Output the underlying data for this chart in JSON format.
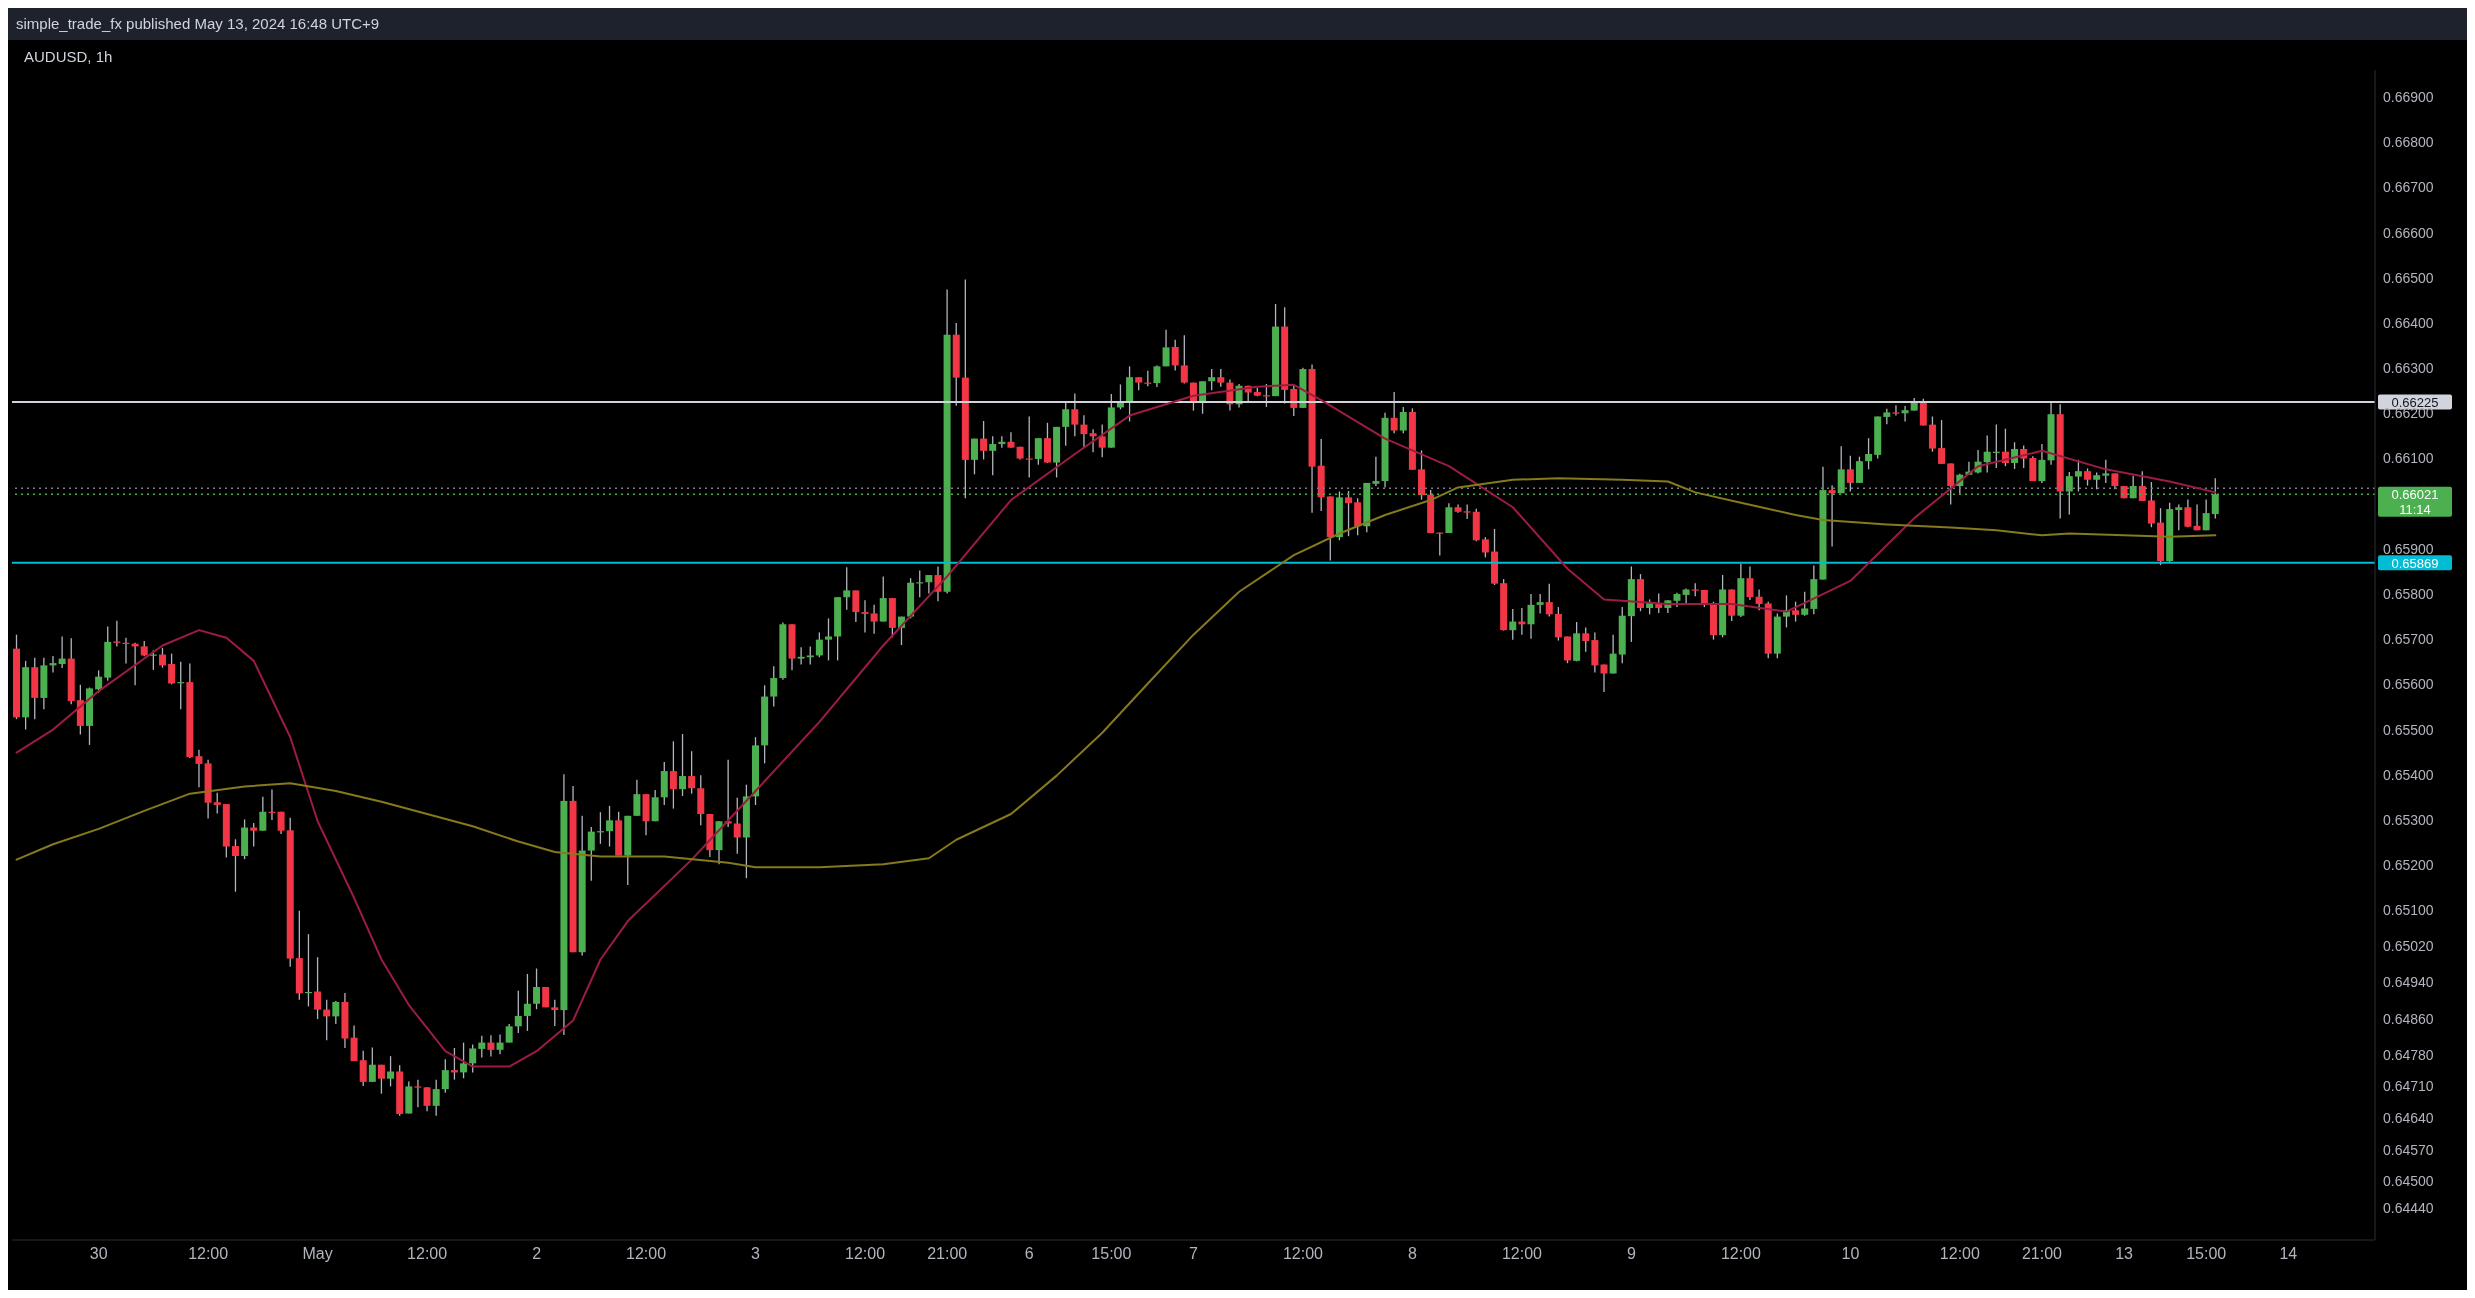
{
  "chart_data": {
    "type": "candlestick",
    "title": "AUDUSD, 1h",
    "annotations": [
      "simple_trade_fx published May 13, 2024 16:48 UTC+9",
      "11:14"
    ],
    "categories": [
      null,
      null,
      null,
      null,
      null,
      null,
      null,
      null,
      null,
      "30",
      null,
      null,
      null,
      null,
      null,
      null,
      null,
      null,
      null,
      null,
      null,
      "12:00",
      null,
      null,
      null,
      null,
      null,
      null,
      null,
      null,
      null,
      null,
      null,
      "May",
      null,
      null,
      null,
      null,
      null,
      null,
      null,
      null,
      null,
      null,
      null,
      "12:00",
      null,
      null,
      null,
      null,
      null,
      null,
      null,
      null,
      null,
      null,
      null,
      "2",
      null,
      null,
      null,
      null,
      null,
      null,
      null,
      null,
      null,
      null,
      null,
      "12:00",
      null,
      null,
      null,
      null,
      null,
      null,
      null,
      null,
      null,
      null,
      null,
      "3",
      null,
      null,
      null,
      null,
      null,
      null,
      null,
      null,
      null,
      null,
      null,
      "12:00",
      null,
      null,
      null,
      null,
      null,
      null,
      null,
      null,
      "21:00",
      null,
      null,
      null,
      null,
      null,
      null,
      null,
      null,
      "6",
      null,
      null,
      null,
      null,
      null,
      null,
      null,
      null,
      "15:00",
      null,
      null,
      null,
      null,
      null,
      null,
      null,
      null,
      "7",
      null,
      null,
      null,
      null,
      null,
      null,
      null,
      null,
      null,
      null,
      null,
      "12:00",
      null,
      null,
      null,
      null,
      null,
      null,
      null,
      null,
      null,
      null,
      null,
      "8",
      null,
      null,
      null,
      null,
      null,
      null,
      null,
      null,
      null,
      null,
      null,
      "12:00",
      null,
      null,
      null,
      null,
      null,
      null,
      null,
      null,
      null,
      null,
      null,
      "9",
      null,
      null,
      null,
      null,
      null,
      null,
      null,
      null,
      null,
      null,
      null,
      "12:00",
      null,
      null,
      null,
      null,
      null,
      null,
      null,
      null,
      null,
      null,
      null,
      "10",
      null,
      null,
      null,
      null,
      null,
      null,
      null,
      null,
      null,
      null,
      null,
      "12:00",
      null,
      null,
      null,
      null,
      null,
      null,
      null,
      null,
      "21:00",
      null,
      null,
      null,
      null,
      null,
      null,
      null,
      null,
      "13",
      null,
      null,
      null,
      null,
      null,
      null,
      null,
      null,
      "15:00",
      null,
      null,
      null,
      null,
      null,
      null,
      null,
      null,
      "14",
      null,
      null,
      null,
      null,
      null,
      null,
      null,
      null,
      null
    ],
    "ohlc": [
      [
        0.65679,
        0.6571,
        0.65523,
        0.65527
      ],
      [
        0.65527,
        0.65652,
        0.655,
        0.65638
      ],
      [
        0.65638,
        0.65659,
        0.65523,
        0.6557
      ],
      [
        0.6557,
        0.65659,
        0.65545,
        0.65642
      ],
      [
        0.65642,
        0.65663,
        0.65626,
        0.65647
      ],
      [
        0.65645,
        0.65706,
        0.65636,
        0.65657
      ],
      [
        0.65657,
        0.65702,
        0.65556,
        0.65563
      ],
      [
        0.65565,
        0.65599,
        0.65489,
        0.65508
      ],
      [
        0.65508,
        0.65593,
        0.65466,
        0.65591
      ],
      [
        0.65589,
        0.65631,
        0.65581,
        0.65617
      ],
      [
        0.65615,
        0.65728,
        0.65608,
        0.65694
      ],
      [
        0.65695,
        0.65741,
        0.65684,
        0.65692
      ],
      [
        0.65692,
        0.65703,
        0.65646,
        0.6569
      ],
      [
        0.6569,
        0.65692,
        0.65598,
        0.65684
      ],
      [
        0.65684,
        0.65696,
        0.65662,
        0.65664
      ],
      [
        0.65664,
        0.65675,
        0.65632,
        0.65666
      ],
      [
        0.65666,
        0.65681,
        0.65637,
        0.65642
      ],
      [
        0.65645,
        0.65668,
        0.656,
        0.65602
      ],
      [
        0.65604,
        0.6565,
        0.65545,
        0.65605
      ],
      [
        0.65605,
        0.65646,
        0.65437,
        0.65439
      ],
      [
        0.65441,
        0.65455,
        0.65372,
        0.65424
      ],
      [
        0.65425,
        0.65433,
        0.65303,
        0.65338
      ],
      [
        0.65339,
        0.6536,
        0.65314,
        0.65333
      ],
      [
        0.65335,
        0.65335,
        0.65217,
        0.65241
      ],
      [
        0.65242,
        0.65257,
        0.65141,
        0.6522
      ],
      [
        0.6522,
        0.65301,
        0.65213,
        0.65283
      ],
      [
        0.65283,
        0.65293,
        0.65241,
        0.65276
      ],
      [
        0.65276,
        0.65351,
        0.65276,
        0.65318
      ],
      [
        0.65318,
        0.65367,
        0.653,
        0.65317
      ],
      [
        0.65318,
        0.65318,
        0.65269,
        0.65276
      ],
      [
        0.65277,
        0.65305,
        0.64975,
        0.64993
      ],
      [
        0.64994,
        0.65099,
        0.64902,
        0.64916
      ],
      [
        0.64917,
        0.65047,
        0.64887,
        0.64919
      ],
      [
        0.6492,
        0.64996,
        0.64859,
        0.6488
      ],
      [
        0.6488,
        0.64902,
        0.64812,
        0.64865
      ],
      [
        0.64865,
        0.64899,
        0.64848,
        0.64897
      ],
      [
        0.64897,
        0.64917,
        0.64795,
        0.64816
      ],
      [
        0.64818,
        0.64845,
        0.64766,
        0.64766
      ],
      [
        0.64768,
        0.64789,
        0.64711,
        0.6472
      ],
      [
        0.6472,
        0.64796,
        0.6472,
        0.64758
      ],
      [
        0.64758,
        0.64758,
        0.64694,
        0.64727
      ],
      [
        0.64727,
        0.64777,
        0.6471,
        0.64743
      ],
      [
        0.64743,
        0.64757,
        0.64645,
        0.64649
      ],
      [
        0.6465,
        0.64721,
        0.6465,
        0.6471
      ],
      [
        0.6471,
        0.64725,
        0.64664,
        0.64708
      ],
      [
        0.64708,
        0.64708,
        0.64655,
        0.64667
      ],
      [
        0.64667,
        0.64725,
        0.64645,
        0.64704
      ],
      [
        0.64704,
        0.6477,
        0.64696,
        0.64746
      ],
      [
        0.64746,
        0.64795,
        0.64725,
        0.64741
      ],
      [
        0.64741,
        0.64807,
        0.64728,
        0.64761
      ],
      [
        0.64761,
        0.64803,
        0.64741,
        0.64794
      ],
      [
        0.64793,
        0.64822,
        0.64774,
        0.64807
      ],
      [
        0.64807,
        0.64823,
        0.64776,
        0.64791
      ],
      [
        0.64791,
        0.64825,
        0.64781,
        0.64807
      ],
      [
        0.64807,
        0.64848,
        0.64807,
        0.64843
      ],
      [
        0.64843,
        0.64922,
        0.64828,
        0.64866
      ],
      [
        0.64866,
        0.64959,
        0.64833,
        0.64893
      ],
      [
        0.64893,
        0.64971,
        0.64881,
        0.6493
      ],
      [
        0.6493,
        0.6493,
        0.64885,
        0.64885
      ],
      [
        0.64885,
        0.64902,
        0.64844,
        0.64879
      ],
      [
        0.64879,
        0.65401,
        0.64824,
        0.65342
      ],
      [
        0.65342,
        0.65375,
        0.65007,
        0.65007
      ],
      [
        0.65007,
        0.65309,
        0.65,
        0.65232
      ],
      [
        0.65232,
        0.65284,
        0.65165,
        0.65274
      ],
      [
        0.65273,
        0.65317,
        0.65247,
        0.65275
      ],
      [
        0.65275,
        0.65331,
        0.65241,
        0.65299
      ],
      [
        0.65299,
        0.65318,
        0.65221,
        0.65221
      ],
      [
        0.65221,
        0.65309,
        0.65156,
        0.65309
      ],
      [
        0.65309,
        0.65389,
        0.65309,
        0.65357
      ],
      [
        0.65357,
        0.65357,
        0.65266,
        0.65297
      ],
      [
        0.65297,
        0.65366,
        0.65297,
        0.6535
      ],
      [
        0.6535,
        0.65428,
        0.65333,
        0.65408
      ],
      [
        0.65408,
        0.65474,
        0.65325,
        0.65368
      ],
      [
        0.65368,
        0.6549,
        0.65353,
        0.65397
      ],
      [
        0.65397,
        0.65452,
        0.65358,
        0.6537
      ],
      [
        0.6537,
        0.65399,
        0.65288,
        0.65313
      ],
      [
        0.65313,
        0.65313,
        0.65218,
        0.65233
      ],
      [
        0.65233,
        0.65297,
        0.65202,
        0.65297
      ],
      [
        0.65297,
        0.65433,
        0.65284,
        0.65292
      ],
      [
        0.65292,
        0.65349,
        0.65225,
        0.65261
      ],
      [
        0.65261,
        0.65378,
        0.65171,
        0.65352
      ],
      [
        0.65352,
        0.65483,
        0.65333,
        0.65465
      ],
      [
        0.65465,
        0.65598,
        0.65425,
        0.65573
      ],
      [
        0.65573,
        0.6564,
        0.65551,
        0.65614
      ],
      [
        0.65614,
        0.65737,
        0.6561,
        0.65733
      ],
      [
        0.65733,
        0.65733,
        0.65631,
        0.65657
      ],
      [
        0.65657,
        0.65682,
        0.65644,
        0.65661
      ],
      [
        0.6566,
        0.65684,
        0.65644,
        0.65664
      ],
      [
        0.65664,
        0.65715,
        0.6566,
        0.65699
      ],
      [
        0.65699,
        0.65746,
        0.65653,
        0.65706
      ],
      [
        0.65706,
        0.65793,
        0.65653,
        0.65793
      ],
      [
        0.65793,
        0.65859,
        0.65765,
        0.65808
      ],
      [
        0.65808,
        0.65808,
        0.65738,
        0.6576
      ],
      [
        0.6576,
        0.65786,
        0.65715,
        0.65756
      ],
      [
        0.65757,
        0.65776,
        0.65712,
        0.65739
      ],
      [
        0.65739,
        0.65839,
        0.65739,
        0.65791
      ],
      [
        0.65791,
        0.65791,
        0.65704,
        0.65725
      ],
      [
        0.65725,
        0.6575,
        0.65687,
        0.6575
      ],
      [
        0.6575,
        0.65835,
        0.65746,
        0.65825
      ],
      [
        0.65825,
        0.65852,
        0.65793,
        0.65826
      ],
      [
        0.65826,
        0.65842,
        0.65801,
        0.65842
      ],
      [
        0.65842,
        0.65861,
        0.65784,
        0.65805
      ],
      [
        0.65805,
        0.66474,
        0.65801,
        0.66374
      ],
      [
        0.66374,
        0.664,
        0.66217,
        0.66279
      ],
      [
        0.66279,
        0.66496,
        0.66012,
        0.66097
      ],
      [
        0.66097,
        0.66144,
        0.66065,
        0.66144
      ],
      [
        0.66144,
        0.66183,
        0.66098,
        0.66117
      ],
      [
        0.66117,
        0.66149,
        0.66063,
        0.66132
      ],
      [
        0.66132,
        0.66149,
        0.66124,
        0.66137
      ],
      [
        0.66137,
        0.66158,
        0.66124,
        0.66124
      ],
      [
        0.66126,
        0.66126,
        0.66098,
        0.661
      ],
      [
        0.661,
        0.66193,
        0.66058,
        0.66099
      ],
      [
        0.66099,
        0.66145,
        0.66086,
        0.66145
      ],
      [
        0.66145,
        0.66179,
        0.6609,
        0.66091
      ],
      [
        0.66091,
        0.6617,
        0.66058,
        0.6617
      ],
      [
        0.6617,
        0.66224,
        0.66128,
        0.66209
      ],
      [
        0.66209,
        0.66244,
        0.66149,
        0.66175
      ],
      [
        0.66175,
        0.66196,
        0.66124,
        0.66154
      ],
      [
        0.66156,
        0.66165,
        0.66114,
        0.66149
      ],
      [
        0.66149,
        0.66175,
        0.66103,
        0.66124
      ],
      [
        0.66124,
        0.66243,
        0.66124,
        0.66213
      ],
      [
        0.66213,
        0.66264,
        0.66209,
        0.66224
      ],
      [
        0.66224,
        0.66304,
        0.66182,
        0.6628
      ],
      [
        0.6628,
        0.6628,
        0.66251,
        0.66268
      ],
      [
        0.66268,
        0.66294,
        0.6626,
        0.66267
      ],
      [
        0.66267,
        0.66306,
        0.66258,
        0.66304
      ],
      [
        0.66304,
        0.66385,
        0.66304,
        0.66346
      ],
      [
        0.66347,
        0.66363,
        0.66295,
        0.66306
      ],
      [
        0.66306,
        0.66373,
        0.66266,
        0.66268
      ],
      [
        0.66268,
        0.66268,
        0.66206,
        0.66227
      ],
      [
        0.66227,
        0.66271,
        0.66199,
        0.66271
      ],
      [
        0.66271,
        0.66298,
        0.66251,
        0.6628
      ],
      [
        0.6628,
        0.66298,
        0.66259,
        0.66268
      ],
      [
        0.66268,
        0.66275,
        0.66206,
        0.6622
      ],
      [
        0.6622,
        0.66265,
        0.66213,
        0.66261
      ],
      [
        0.66261,
        0.66261,
        0.66225,
        0.66246
      ],
      [
        0.66247,
        0.66256,
        0.66238,
        0.66239
      ],
      [
        0.6624,
        0.66265,
        0.66214,
        0.66239
      ],
      [
        0.66238,
        0.66442,
        0.66238,
        0.66392
      ],
      [
        0.66392,
        0.66435,
        0.66222,
        0.66252
      ],
      [
        0.66254,
        0.66263,
        0.66194,
        0.66212
      ],
      [
        0.66212,
        0.66301,
        0.66212,
        0.66298
      ],
      [
        0.66298,
        0.66308,
        0.6598,
        0.66082
      ],
      [
        0.66084,
        0.66143,
        0.65984,
        0.66014
      ],
      [
        0.66016,
        0.66016,
        0.65874,
        0.65926
      ],
      [
        0.65926,
        0.66027,
        0.65919,
        0.66014
      ],
      [
        0.66014,
        0.66028,
        0.65928,
        0.66001
      ],
      [
        0.66003,
        0.66012,
        0.6593,
        0.6595
      ],
      [
        0.6595,
        0.66046,
        0.65937,
        0.66046
      ],
      [
        0.66044,
        0.66104,
        0.66039,
        0.6605
      ],
      [
        0.6605,
        0.66201,
        0.66036,
        0.6619
      ],
      [
        0.6619,
        0.66247,
        0.66156,
        0.66162
      ],
      [
        0.66162,
        0.66214,
        0.66156,
        0.66203
      ],
      [
        0.66203,
        0.66211,
        0.66075,
        0.66075
      ],
      [
        0.66076,
        0.66118,
        0.66009,
        0.66019
      ],
      [
        0.6602,
        0.6603,
        0.65935,
        0.65935
      ],
      [
        0.65936,
        0.65936,
        0.65885,
        0.65935
      ],
      [
        0.65935,
        0.66001,
        0.65935,
        0.65992
      ],
      [
        0.65992,
        0.65998,
        0.6598,
        0.65982
      ],
      [
        0.65983,
        0.65998,
        0.65966,
        0.65982
      ],
      [
        0.65982,
        0.65989,
        0.65917,
        0.65919
      ],
      [
        0.65921,
        0.65926,
        0.65881,
        0.65892
      ],
      [
        0.65894,
        0.65944,
        0.6582,
        0.65823
      ],
      [
        0.65824,
        0.65833,
        0.65719,
        0.6572
      ],
      [
        0.6572,
        0.65767,
        0.65699,
        0.65739
      ],
      [
        0.65739,
        0.65769,
        0.6571,
        0.65733
      ],
      [
        0.65733,
        0.658,
        0.65701,
        0.65776
      ],
      [
        0.65776,
        0.658,
        0.65757,
        0.65782
      ],
      [
        0.65782,
        0.65823,
        0.6575,
        0.65755
      ],
      [
        0.65756,
        0.65771,
        0.65697,
        0.65704
      ],
      [
        0.65706,
        0.65706,
        0.65647,
        0.65653
      ],
      [
        0.65652,
        0.65738,
        0.65651,
        0.65713
      ],
      [
        0.65713,
        0.65726,
        0.65672,
        0.65696
      ],
      [
        0.65698,
        0.65715,
        0.65626,
        0.65642
      ],
      [
        0.65644,
        0.65644,
        0.65583,
        0.65624
      ],
      [
        0.65624,
        0.6571,
        0.65624,
        0.65668
      ],
      [
        0.65666,
        0.65771,
        0.65647,
        0.65752
      ],
      [
        0.65751,
        0.65861,
        0.65694,
        0.65833
      ],
      [
        0.65833,
        0.65844,
        0.65762,
        0.65769
      ],
      [
        0.65769,
        0.65788,
        0.65755,
        0.6578
      ],
      [
        0.6578,
        0.65801,
        0.65758,
        0.65769
      ],
      [
        0.65769,
        0.65786,
        0.65758,
        0.65786
      ],
      [
        0.65785,
        0.65803,
        0.65771,
        0.658
      ],
      [
        0.65798,
        0.65812,
        0.6578,
        0.6581
      ],
      [
        0.6581,
        0.65824,
        0.65795,
        0.65809
      ],
      [
        0.65809,
        0.65809,
        0.65771,
        0.65778
      ],
      [
        0.65779,
        0.65783,
        0.65699,
        0.65709
      ],
      [
        0.65709,
        0.65842,
        0.65704,
        0.6581
      ],
      [
        0.6581,
        0.6581,
        0.6574,
        0.65752
      ],
      [
        0.65752,
        0.65867,
        0.65749,
        0.65835
      ],
      [
        0.65835,
        0.65861,
        0.65787,
        0.65793
      ],
      [
        0.65794,
        0.6581,
        0.65764,
        0.65778
      ],
      [
        0.65779,
        0.65783,
        0.65658,
        0.65668
      ],
      [
        0.65668,
        0.65757,
        0.65658,
        0.6575
      ],
      [
        0.6575,
        0.65797,
        0.65726,
        0.65764
      ],
      [
        0.65764,
        0.65783,
        0.65739,
        0.65754
      ],
      [
        0.65754,
        0.65805,
        0.65752,
        0.65768
      ],
      [
        0.65767,
        0.65863,
        0.65755,
        0.65833
      ],
      [
        0.65832,
        0.66082,
        0.65832,
        0.6603
      ],
      [
        0.6603,
        0.66041,
        0.65905,
        0.66023
      ],
      [
        0.66023,
        0.66127,
        0.66023,
        0.66076
      ],
      [
        0.66076,
        0.66106,
        0.66027,
        0.66046
      ],
      [
        0.66046,
        0.66104,
        0.66046,
        0.66094
      ],
      [
        0.66094,
        0.66145,
        0.66076,
        0.6611
      ],
      [
        0.66108,
        0.66193,
        0.661,
        0.66193
      ],
      [
        0.66192,
        0.6621,
        0.66176,
        0.66202
      ],
      [
        0.66202,
        0.66218,
        0.66195,
        0.66201
      ],
      [
        0.662,
        0.66216,
        0.66182,
        0.66207
      ],
      [
        0.66206,
        0.66234,
        0.66206,
        0.66224
      ],
      [
        0.66224,
        0.66232,
        0.66173,
        0.66173
      ],
      [
        0.66175,
        0.66193,
        0.66115,
        0.66122
      ],
      [
        0.66123,
        0.66185,
        0.66088,
        0.66088
      ],
      [
        0.66089,
        0.66089,
        0.65998,
        0.66039
      ],
      [
        0.66039,
        0.66066,
        0.66022,
        0.66064
      ],
      [
        0.66064,
        0.66093,
        0.66064,
        0.66071
      ],
      [
        0.66069,
        0.66119,
        0.66067,
        0.66093
      ],
      [
        0.66092,
        0.66151,
        0.66069,
        0.66115
      ],
      [
        0.66113,
        0.66175,
        0.66079,
        0.66115
      ],
      [
        0.66115,
        0.66166,
        0.66083,
        0.6609
      ],
      [
        0.6609,
        0.66136,
        0.66077,
        0.66121
      ],
      [
        0.66121,
        0.66129,
        0.66079,
        0.661
      ],
      [
        0.66101,
        0.66105,
        0.6605,
        0.6605
      ],
      [
        0.6605,
        0.66132,
        0.66046,
        0.66097
      ],
      [
        0.66096,
        0.66227,
        0.66086,
        0.66198
      ],
      [
        0.66198,
        0.6622,
        0.65967,
        0.66027
      ],
      [
        0.66027,
        0.6607,
        0.65976,
        0.66061
      ],
      [
        0.6606,
        0.66097,
        0.66027,
        0.66072
      ],
      [
        0.66072,
        0.66078,
        0.6604,
        0.66053
      ],
      [
        0.66053,
        0.66069,
        0.66032,
        0.66063
      ],
      [
        0.66062,
        0.66097,
        0.66046,
        0.66067
      ],
      [
        0.66067,
        0.66067,
        0.66032,
        0.66039
      ],
      [
        0.66039,
        0.66039,
        0.66012,
        0.66012
      ],
      [
        0.66012,
        0.66062,
        0.66012,
        0.66039
      ],
      [
        0.66039,
        0.66072,
        0.66006,
        0.66006
      ],
      [
        0.66007,
        0.66048,
        0.65948,
        0.65956
      ],
      [
        0.65958,
        0.6599,
        0.65864,
        0.65873
      ],
      [
        0.65873,
        0.66002,
        0.65869,
        0.65988
      ],
      [
        0.65986,
        0.65998,
        0.65941,
        0.65992
      ],
      [
        0.65992,
        0.66009,
        0.65948,
        0.65949
      ],
      [
        0.65951,
        0.65998,
        0.65941,
        0.65941
      ],
      [
        0.65941,
        0.66009,
        0.65941,
        0.65979
      ],
      [
        0.65977,
        0.66056,
        0.65967,
        0.66021
      ],
      null,
      null,
      null,
      null,
      null,
      null,
      null,
      null,
      null,
      null,
      null,
      null,
      null,
      null,
      null,
      null,
      null
    ],
    "series": [
      {
        "type": "line",
        "color": "#9c1c43",
        "values": [
          0.65449,
          null,
          null,
          null,
          0.655,
          null,
          null,
          null,
          null,
          0.65585,
          null,
          null,
          null,
          null,
          null,
          null,
          0.65686,
          null,
          null,
          null,
          0.6572,
          null,
          null,
          0.65703,
          null,
          null,
          0.65652,
          null,
          null,
          null,
          0.65483,
          null,
          null,
          0.65297,
          null,
          null,
          null,
          0.65127,
          null,
          null,
          0.64991,
          null,
          null,
          0.6489,
          null,
          null,
          null,
          0.64788,
          null,
          null,
          0.64754,
          null,
          null,
          null,
          0.64754,
          null,
          null,
          0.64788,
          null,
          null,
          null,
          0.64856,
          null,
          null,
          0.64991,
          null,
          null,
          0.65076,
          null,
          null,
          null,
          null,
          null,
          null,
          0.65212,
          null,
          null,
          null,
          null,
          null,
          null,
          0.65364,
          null,
          null,
          null,
          null,
          null,
          null,
          0.65517,
          null,
          null,
          null,
          null,
          null,
          null,
          0.65686,
          null,
          null,
          null,
          null,
          null,
          null,
          0.65839,
          null,
          null,
          null,
          null,
          null,
          null,
          0.66008,
          null,
          null,
          null,
          null,
          null,
          null,
          0.6611,
          null,
          null,
          null,
          null,
          null,
          0.66195,
          null,
          null,
          null,
          null,
          null,
          null,
          0.66239,
          null,
          null,
          null,
          null,
          null,
          null,
          0.66259,
          null,
          null,
          null,
          0.66263,
          null,
          null,
          0.66229,
          null,
          null,
          null,
          null,
          null,
          null,
          0.66144,
          null,
          null,
          null,
          null,
          null,
          null,
          0.66083,
          null,
          null,
          null,
          null,
          null,
          null,
          0.65992,
          null,
          null,
          null,
          null,
          null,
          0.65856,
          null,
          null,
          null,
          0.65788,
          null,
          null,
          null,
          null,
          null,
          null,
          0.65778,
          null,
          null,
          null,
          null,
          null,
          null,
          0.65778,
          null,
          null,
          null,
          null,
          null,
          0.65761,
          null,
          null,
          null,
          null,
          null,
          null,
          0.65829,
          null,
          null,
          null,
          null,
          null,
          null,
          0.65968,
          null,
          null,
          null,
          null,
          null,
          null,
          0.66083,
          null,
          null,
          null,
          null,
          null,
          null,
          0.66117,
          null,
          null,
          null,
          null,
          null,
          null,
          0.66076,
          null,
          null,
          null,
          null,
          null,
          null,
          0.66049,
          null,
          null,
          null,
          null,
          0.66025,
          null,
          null,
          null,
          null,
          null,
          null,
          null,
          null,
          null,
          null,
          null,
          null,
          null,
          null,
          null,
          null,
          null
        ]
      },
      {
        "type": "line",
        "color": "#857a1c",
        "values": [
          0.65212,
          null,
          null,
          null,
          0.65246,
          null,
          null,
          null,
          null,
          0.6528,
          null,
          null,
          null,
          null,
          0.6532,
          null,
          null,
          null,
          null,
          0.65358,
          null,
          null,
          null,
          null,
          null,
          0.65374,
          null,
          null,
          null,
          null,
          0.65381,
          null,
          null,
          null,
          null,
          0.65364,
          null,
          null,
          null,
          null,
          0.6534,
          null,
          null,
          null,
          null,
          0.65313,
          null,
          null,
          null,
          null,
          0.65286,
          null,
          null,
          null,
          null,
          0.65252,
          null,
          null,
          null,
          0.65229,
          null,
          null,
          null,
          null,
          0.65219,
          null,
          null,
          null,
          null,
          null,
          null,
          0.65219,
          null,
          null,
          null,
          null,
          null,
          null,
          0.65205,
          null,
          null,
          0.65195,
          null,
          null,
          null,
          null,
          null,
          null,
          0.65195,
          null,
          null,
          null,
          null,
          null,
          null,
          0.65202,
          null,
          null,
          null,
          null,
          0.65215,
          null,
          null,
          0.65256,
          null,
          null,
          null,
          null,
          null,
          0.65313,
          null,
          null,
          null,
          null,
          0.65398,
          null,
          null,
          null,
          null,
          0.65493,
          null,
          null,
          null,
          null,
          0.65602,
          null,
          null,
          null,
          null,
          0.6571,
          null,
          null,
          null,
          null,
          0.65805,
          null,
          null,
          null,
          null,
          null,
          0.65886,
          null,
          null,
          null,
          null,
          0.65934,
          null,
          null,
          null,
          null,
          0.65975,
          null,
          null,
          null,
          null,
          0.66008,
          null,
          null,
          0.66036,
          null,
          null,
          null,
          null,
          null,
          0.66053,
          null,
          null,
          null,
          null,
          0.66056,
          null,
          null,
          null,
          null,
          null,
          null,
          0.66053,
          null,
          null,
          null,
          null,
          0.66049,
          null,
          null,
          0.66025,
          null,
          null,
          null,
          null,
          0.66002,
          null,
          null,
          null,
          null,
          null,
          0.65975,
          null,
          null,
          0.65964,
          null,
          null,
          null,
          null,
          null,
          null,
          0.65954,
          null,
          null,
          null,
          null,
          null,
          null,
          0.65947,
          null,
          null,
          null,
          null,
          0.65941,
          null,
          null,
          null,
          null,
          0.6593,
          null,
          null,
          0.65934,
          null,
          null,
          null,
          null,
          null,
          0.6593,
          null,
          null,
          null,
          null,
          0.65927,
          null,
          null,
          null,
          null,
          0.6593,
          null,
          null,
          null,
          null,
          null,
          null,
          null,
          null,
          null,
          null,
          null,
          null,
          null,
          null,
          null,
          null,
          null
        ]
      }
    ],
    "ylim": [
      0.6437,
      0.6696
    ],
    "yticks": [
      {
        "value": 0.6444,
        "label": "0.64440"
      },
      {
        "value": 0.645,
        "label": "0.64500"
      },
      {
        "value": 0.6457,
        "label": "0.64570"
      },
      {
        "value": 0.6464,
        "label": "0.64640"
      },
      {
        "value": 0.6471,
        "label": "0.64710"
      },
      {
        "value": 0.6478,
        "label": "0.64780"
      },
      {
        "value": 0.6486,
        "label": "0.64860"
      },
      {
        "value": 0.6494,
        "label": "0.64940"
      },
      {
        "value": 0.6502,
        "label": "0.65020"
      },
      {
        "value": 0.651,
        "label": "0.65100"
      },
      {
        "value": 0.652,
        "label": "0.65200"
      },
      {
        "value": 0.653,
        "label": "0.65300"
      },
      {
        "value": 0.654,
        "label": "0.65400"
      },
      {
        "value": 0.655,
        "label": "0.65500"
      },
      {
        "value": 0.656,
        "label": "0.65600"
      },
      {
        "value": 0.657,
        "label": "0.65700"
      },
      {
        "value": 0.658,
        "label": "0.65800"
      },
      {
        "value": 0.659,
        "label": "0.65900"
      },
      {
        "value": 0.661,
        "label": "0.66100"
      },
      {
        "value": 0.662,
        "label": "0.66200"
      },
      {
        "value": 0.663,
        "label": "0.66300"
      },
      {
        "value": 0.664,
        "label": "0.66400"
      },
      {
        "value": 0.665,
        "label": "0.66500"
      },
      {
        "value": 0.666,
        "label": "0.66600"
      },
      {
        "value": 0.667,
        "label": "0.66700"
      },
      {
        "value": 0.668,
        "label": "0.66800"
      },
      {
        "value": 0.669,
        "label": "0.66900"
      }
    ],
    "ref_lines": [
      {
        "axis": "y",
        "value": 0.66034,
        "color": "#787b86",
        "line_style": "dotted"
      },
      {
        "axis": "y",
        "value": 0.66225,
        "label": "0.66225",
        "color": "#d1d4dc",
        "line_style": "solid"
      },
      {
        "axis": "y",
        "value": 0.65869,
        "label": "0.65869",
        "color": "#00bcd4",
        "line_style": "solid"
      },
      {
        "axis": "y",
        "value": 0.66021,
        "label": "0.66021",
        "color": "#4caf50",
        "line_style": "dotted"
      }
    ]
  }
}
